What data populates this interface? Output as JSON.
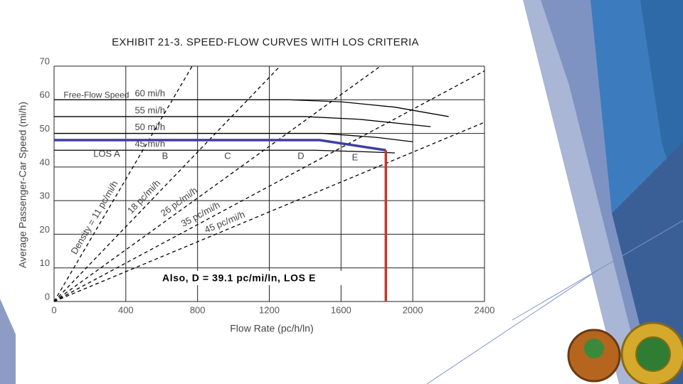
{
  "chart_data": {
    "type": "line",
    "title": "EXHIBIT 21-3. SPEED-FLOW CURVES WITH LOS CRITERIA",
    "x_label": "Flow Rate (pc/h/ln)",
    "y_label": "Average Passenger-Car Speed (mi/h)",
    "xlim": [
      0,
      2400
    ],
    "ylim": [
      0,
      70
    ],
    "xticks": [
      0,
      400,
      800,
      1200,
      1600,
      2000,
      2400
    ],
    "yticks": [
      0,
      10,
      20,
      30,
      40,
      50,
      60,
      70
    ],
    "grid": true,
    "series_title": "Free-Flow Speed",
    "series": [
      {
        "name": "60 mi/h",
        "color": "#000000",
        "x": [
          0,
          1300,
          1600,
          1900,
          2200
        ],
        "values": [
          60,
          60,
          59.4,
          57.8,
          55
        ]
      },
      {
        "name": "55 mi/h",
        "color": "#000000",
        "x": [
          0,
          1400,
          1700,
          2100
        ],
        "values": [
          55,
          55,
          54.2,
          52
        ]
      },
      {
        "name": "50 mi/h",
        "color": "#000000",
        "x": [
          0,
          1500,
          1800,
          2000
        ],
        "values": [
          50,
          50,
          48.8,
          47.5
        ]
      },
      {
        "name": "45 mi/h",
        "color": "#000000",
        "x": [
          0,
          1450,
          1700,
          1900
        ],
        "values": [
          45,
          45,
          44.6,
          44.2
        ]
      },
      {
        "name": "Density = 11 pc/mi/h",
        "color": "#000000",
        "dashed": true,
        "x": [
          0,
          770
        ],
        "values": [
          0,
          70
        ]
      },
      {
        "name": "18 pc/mi/h",
        "color": "#000000",
        "dashed": true,
        "x": [
          0,
          1260
        ],
        "values": [
          0,
          70
        ]
      },
      {
        "name": "26 pc/mi/h",
        "color": "#000000",
        "dashed": true,
        "x": [
          0,
          1820
        ],
        "values": [
          0,
          70
        ]
      },
      {
        "name": "35 pc/mi/h",
        "color": "#000000",
        "dashed": true,
        "x": [
          0,
          2400
        ],
        "values": [
          0,
          68.6
        ]
      },
      {
        "name": "45 pc/mi/h",
        "color": "#000000",
        "dashed": true,
        "x": [
          0,
          2400
        ],
        "values": [
          0,
          53.3
        ]
      },
      {
        "color": "#3f3f9e",
        "x": [
          0,
          1480,
          1850
        ],
        "values": [
          48,
          48,
          45
        ]
      },
      {
        "color": "#c0392b",
        "x": [
          1850,
          1850
        ],
        "values": [
          45,
          0
        ]
      }
    ],
    "annotations": [
      "LOS A",
      "B",
      "C",
      "D",
      "E",
      "Also, D = 39.1 pc/mi/ln, LOS E"
    ]
  }
}
